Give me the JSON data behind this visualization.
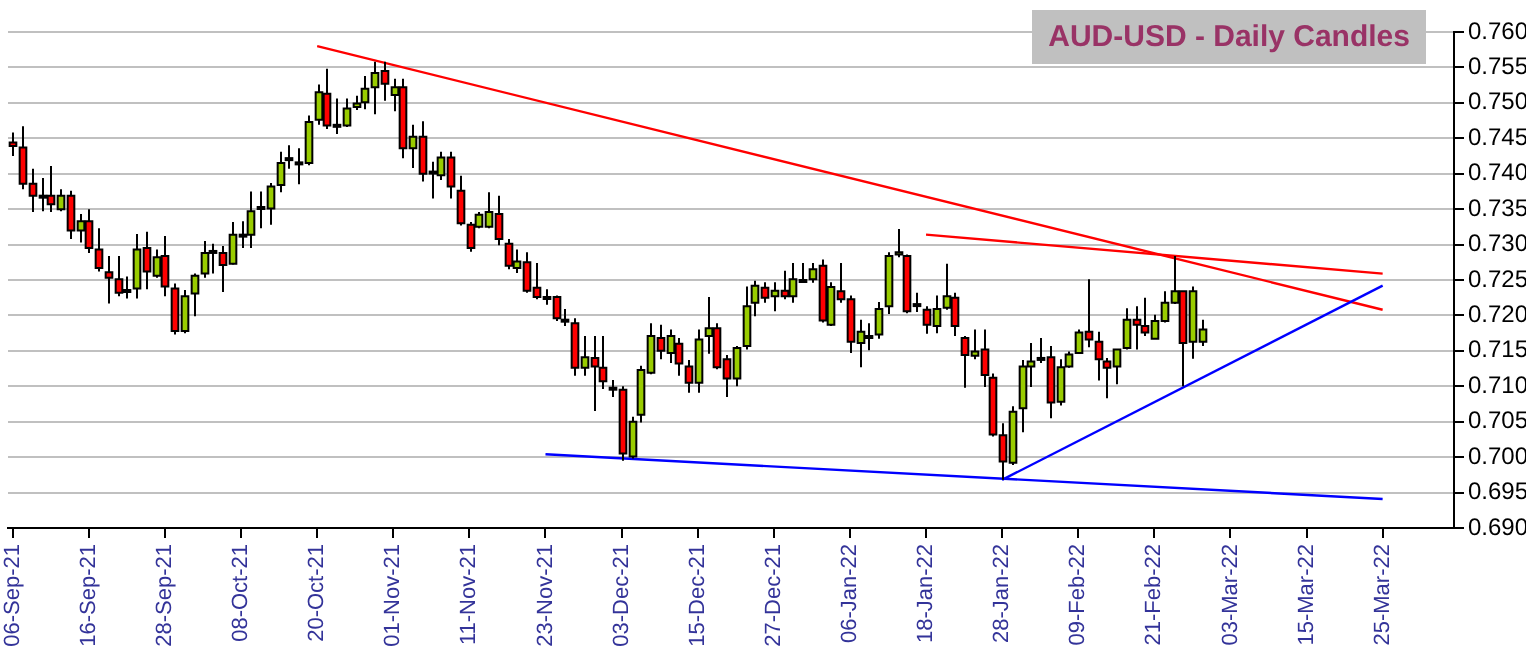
{
  "chart_data": {
    "type": "candlestick",
    "title": "AUD-USD - Daily Candles",
    "categories": [
      "06-Sep-21",
      null,
      null,
      null,
      null,
      null,
      null,
      null,
      "16-Sep-21",
      null,
      null,
      null,
      null,
      null,
      null,
      null,
      "28-Sep-21",
      null,
      null,
      null,
      null,
      null,
      null,
      null,
      "08-Oct-21",
      null,
      null,
      null,
      null,
      null,
      null,
      null,
      "20-Oct-21",
      null,
      null,
      null,
      null,
      null,
      null,
      null,
      "01-Nov-21",
      null,
      null,
      null,
      null,
      null,
      null,
      null,
      "11-Nov-21",
      null,
      null,
      null,
      null,
      null,
      null,
      null,
      "23-Nov-21",
      null,
      null,
      null,
      null,
      null,
      null,
      null,
      "03-Dec-21",
      null,
      null,
      null,
      null,
      null,
      null,
      null,
      "15-Dec-21",
      null,
      null,
      null,
      null,
      null,
      null,
      null,
      "27-Dec-21",
      null,
      null,
      null,
      null,
      null,
      null,
      null,
      "06-Jan-22",
      null,
      null,
      null,
      null,
      null,
      null,
      null,
      "18-Jan-22",
      null,
      null,
      null,
      null,
      null,
      null,
      null,
      "28-Jan-22",
      null,
      null,
      null,
      null,
      null,
      null,
      null,
      "09-Feb-22",
      null,
      null,
      null,
      null,
      null,
      null,
      null,
      "21-Feb-22",
      null,
      null,
      null,
      null,
      null,
      null,
      null,
      "03-Mar-22",
      null,
      null,
      null,
      null,
      null,
      null,
      null,
      "15-Mar-22",
      null,
      null,
      null,
      null,
      null,
      null,
      null,
      "25-Mar-22",
      null,
      null,
      null,
      null,
      null,
      null,
      null
    ],
    "ohlc": [
      [
        0.7444,
        0.7458,
        0.7425,
        0.7439
      ],
      [
        0.7437,
        0.7467,
        0.7378,
        0.7386
      ],
      [
        0.7386,
        0.7407,
        0.7346,
        0.7369
      ],
      [
        0.7369,
        0.7394,
        0.7347,
        0.7368
      ],
      [
        0.7369,
        0.7411,
        0.7346,
        0.7357
      ],
      [
        0.735,
        0.7378,
        0.7347,
        0.7369
      ],
      [
        0.7369,
        0.7376,
        0.7308,
        0.732
      ],
      [
        0.732,
        0.7343,
        0.7303,
        0.7333
      ],
      [
        0.7333,
        0.735,
        0.7288,
        0.7295
      ],
      [
        0.7293,
        0.7323,
        0.7262,
        0.7267
      ],
      [
        0.7261,
        0.7284,
        0.7217,
        0.7253
      ],
      [
        0.7251,
        0.7284,
        0.7227,
        0.7232
      ],
      [
        0.7236,
        0.7255,
        0.7224,
        0.7233
      ],
      [
        0.7238,
        0.7315,
        0.7224,
        0.7293
      ],
      [
        0.7295,
        0.7318,
        0.7237,
        0.7262
      ],
      [
        0.7256,
        0.7293,
        0.7253,
        0.7282
      ],
      [
        0.7284,
        0.7312,
        0.7227,
        0.7241
      ],
      [
        0.7238,
        0.7245,
        0.7173,
        0.7178
      ],
      [
        0.7178,
        0.7236,
        0.7175,
        0.7227
      ],
      [
        0.7231,
        0.7259,
        0.7199,
        0.7256
      ],
      [
        0.7259,
        0.7305,
        0.7253,
        0.7288
      ],
      [
        0.7291,
        0.7301,
        0.7259,
        0.729
      ],
      [
        0.7288,
        0.7298,
        0.7233,
        0.7271
      ],
      [
        0.7273,
        0.7332,
        0.7272,
        0.7314
      ],
      [
        0.7314,
        0.7333,
        0.7295,
        0.7312
      ],
      [
        0.7314,
        0.7375,
        0.7295,
        0.7347
      ],
      [
        0.7351,
        0.7375,
        0.7323,
        0.7353
      ],
      [
        0.7351,
        0.7387,
        0.7328,
        0.7382
      ],
      [
        0.7384,
        0.7431,
        0.7374,
        0.7415
      ],
      [
        0.742,
        0.744,
        0.7407,
        0.7422
      ],
      [
        0.7416,
        0.7436,
        0.7385,
        0.7414
      ],
      [
        0.7415,
        0.7482,
        0.7412,
        0.7473
      ],
      [
        0.7476,
        0.7526,
        0.7469,
        0.7515
      ],
      [
        0.7513,
        0.7548,
        0.7463,
        0.7468
      ],
      [
        0.7469,
        0.7506,
        0.7456,
        0.7468
      ],
      [
        0.7468,
        0.7506,
        0.7466,
        0.7492
      ],
      [
        0.7494,
        0.751,
        0.749,
        0.7499
      ],
      [
        0.7501,
        0.7538,
        0.7491,
        0.752
      ],
      [
        0.7522,
        0.7558,
        0.7484,
        0.7542
      ],
      [
        0.7545,
        0.7558,
        0.7503,
        0.7527
      ],
      [
        0.7511,
        0.7534,
        0.7488,
        0.7522
      ],
      [
        0.7522,
        0.7534,
        0.7422,
        0.7436
      ],
      [
        0.7436,
        0.7469,
        0.7408,
        0.7452
      ],
      [
        0.7452,
        0.7474,
        0.7389,
        0.74
      ],
      [
        0.7403,
        0.7417,
        0.7365,
        0.7402
      ],
      [
        0.7398,
        0.7431,
        0.7391,
        0.7423
      ],
      [
        0.7423,
        0.7431,
        0.7365,
        0.7382
      ],
      [
        0.7376,
        0.7397,
        0.7327,
        0.733
      ],
      [
        0.7328,
        0.7332,
        0.729,
        0.7295
      ],
      [
        0.7325,
        0.7346,
        0.7323,
        0.7342
      ],
      [
        0.7325,
        0.7374,
        0.7323,
        0.7346
      ],
      [
        0.7343,
        0.7369,
        0.7299,
        0.7308
      ],
      [
        0.7301,
        0.7308,
        0.7265,
        0.727
      ],
      [
        0.7267,
        0.7293,
        0.726,
        0.7276
      ],
      [
        0.7275,
        0.7289,
        0.7232,
        0.7235
      ],
      [
        0.7239,
        0.7274,
        0.7223,
        0.7226
      ],
      [
        0.7226,
        0.7237,
        0.7215,
        0.7225
      ],
      [
        0.7226,
        0.7228,
        0.7192,
        0.7196
      ],
      [
        0.7194,
        0.7209,
        0.7185,
        0.7193
      ],
      [
        0.7189,
        0.7196,
        0.7115,
        0.7126
      ],
      [
        0.7126,
        0.7171,
        0.7115,
        0.7141
      ],
      [
        0.714,
        0.7171,
        0.7065,
        0.7128
      ],
      [
        0.7126,
        0.7171,
        0.7096,
        0.7107
      ],
      [
        0.7098,
        0.7109,
        0.7085,
        0.7097
      ],
      [
        0.7095,
        0.71,
        0.6995,
        0.7005
      ],
      [
        0.7001,
        0.7057,
        0.6998,
        0.705
      ],
      [
        0.706,
        0.7129,
        0.7049,
        0.7123
      ],
      [
        0.7119,
        0.7189,
        0.7117,
        0.7171
      ],
      [
        0.7168,
        0.7187,
        0.7138,
        0.715
      ],
      [
        0.7147,
        0.718,
        0.7133,
        0.7171
      ],
      [
        0.716,
        0.7168,
        0.7115,
        0.7132
      ],
      [
        0.7128,
        0.7137,
        0.7091,
        0.7105
      ],
      [
        0.7105,
        0.718,
        0.7091,
        0.7166
      ],
      [
        0.7171,
        0.7226,
        0.7146,
        0.7182
      ],
      [
        0.7182,
        0.7189,
        0.7124,
        0.7127
      ],
      [
        0.7138,
        0.7144,
        0.7085,
        0.7111
      ],
      [
        0.7111,
        0.7157,
        0.71,
        0.7154
      ],
      [
        0.7157,
        0.7241,
        0.7152,
        0.7213
      ],
      [
        0.7218,
        0.7249,
        0.7199,
        0.7242
      ],
      [
        0.7239,
        0.7247,
        0.7218,
        0.7225
      ],
      [
        0.7227,
        0.7247,
        0.7206,
        0.7235
      ],
      [
        0.7235,
        0.7263,
        0.7223,
        0.7227
      ],
      [
        0.7227,
        0.7274,
        0.7218,
        0.7251
      ],
      [
        0.7249,
        0.7274,
        0.7246,
        0.725
      ],
      [
        0.7251,
        0.7274,
        0.7246,
        0.7265
      ],
      [
        0.727,
        0.7279,
        0.719,
        0.7193
      ],
      [
        0.7187,
        0.7247,
        0.7185,
        0.724
      ],
      [
        0.7234,
        0.7274,
        0.7218,
        0.7223
      ],
      [
        0.7223,
        0.7228,
        0.7147,
        0.7163
      ],
      [
        0.7161,
        0.7194,
        0.7127,
        0.7177
      ],
      [
        0.717,
        0.7189,
        0.7151,
        0.7171
      ],
      [
        0.7173,
        0.7219,
        0.7167,
        0.7209
      ],
      [
        0.7213,
        0.7289,
        0.7202,
        0.7284
      ],
      [
        0.7286,
        0.7322,
        0.7282,
        0.7289
      ],
      [
        0.7284,
        0.7286,
        0.7203,
        0.7206
      ],
      [
        0.7216,
        0.7232,
        0.7205,
        0.7215
      ],
      [
        0.7208,
        0.7213,
        0.7174,
        0.7187
      ],
      [
        0.7185,
        0.7228,
        0.7175,
        0.7209
      ],
      [
        0.7211,
        0.7273,
        0.7208,
        0.7227
      ],
      [
        0.7225,
        0.7232,
        0.7171,
        0.7185
      ],
      [
        0.7168,
        0.7171,
        0.7098,
        0.7144
      ],
      [
        0.7143,
        0.718,
        0.7138,
        0.7149
      ],
      [
        0.7152,
        0.718,
        0.7099,
        0.7116
      ],
      [
        0.7112,
        0.7118,
        0.7029,
        0.7032
      ],
      [
        0.7031,
        0.7048,
        0.6968,
        0.6994
      ],
      [
        0.6992,
        0.7072,
        0.6989,
        0.7064
      ],
      [
        0.7069,
        0.7137,
        0.7035,
        0.7128
      ],
      [
        0.7128,
        0.7161,
        0.7099,
        0.7135
      ],
      [
        0.714,
        0.7168,
        0.7133,
        0.7139
      ],
      [
        0.7141,
        0.7157,
        0.7055,
        0.7077
      ],
      [
        0.7078,
        0.7138,
        0.7073,
        0.7127
      ],
      [
        0.7128,
        0.7149,
        0.7126,
        0.7145
      ],
      [
        0.7147,
        0.718,
        0.7147,
        0.7176
      ],
      [
        0.7177,
        0.7251,
        0.7155,
        0.7166
      ],
      [
        0.7163,
        0.7177,
        0.7108,
        0.7138
      ],
      [
        0.7135,
        0.714,
        0.7083,
        0.7126
      ],
      [
        0.7128,
        0.7152,
        0.7103,
        0.7152
      ],
      [
        0.7154,
        0.721,
        0.7152,
        0.7194
      ],
      [
        0.7194,
        0.7213,
        0.7152,
        0.7187
      ],
      [
        0.7185,
        0.7225,
        0.7171,
        0.7176
      ],
      [
        0.7167,
        0.7201,
        0.7167,
        0.7192
      ],
      [
        0.7192,
        0.7234,
        0.719,
        0.7218
      ],
      [
        0.7218,
        0.7284,
        0.7216,
        0.7234
      ],
      [
        0.7234,
        0.7234,
        0.71,
        0.7161
      ],
      [
        0.7163,
        0.7241,
        0.7139,
        0.7234
      ],
      [
        0.7163,
        0.7194,
        0.7157,
        0.718
      ],
      null,
      null,
      null,
      null,
      null,
      null,
      null,
      null,
      null,
      null,
      null,
      null,
      null,
      null,
      null,
      null,
      null,
      null,
      null,
      null,
      null,
      null,
      null,
      null,
      null,
      null
    ],
    "series": [
      {
        "type": "line",
        "color": "#ff0000",
        "x": [
          "20-Oct-21",
          "25-Mar-22"
        ],
        "values": [
          0.758,
          0.7208
        ]
      },
      {
        "type": "line",
        "color": "#ff0000",
        "x": [
          "18-Jan-22",
          "25-Mar-22"
        ],
        "values": [
          0.7314,
          0.7259
        ]
      },
      {
        "type": "line",
        "color": "#0000ff",
        "x": [
          "23-Nov-21",
          "25-Mar-22"
        ],
        "values": [
          0.7004,
          0.6941
        ]
      },
      {
        "type": "line",
        "color": "#0000ff",
        "x": [
          "28-Jan-22",
          "25-Mar-22"
        ],
        "values": [
          0.6968,
          0.7242
        ]
      }
    ],
    "ylim": [
      0.69,
      0.76
    ],
    "yticks": [
      {
        "value": 0.69,
        "label": "0.690"
      },
      {
        "value": 0.695,
        "label": "0.695"
      },
      {
        "value": 0.7,
        "label": "0.700"
      },
      {
        "value": 0.705,
        "label": "0.705"
      },
      {
        "value": 0.71,
        "label": "0.710"
      },
      {
        "value": 0.715,
        "label": "0.715"
      },
      {
        "value": 0.72,
        "label": "0.720"
      },
      {
        "value": 0.725,
        "label": "0.725"
      },
      {
        "value": 0.73,
        "label": "0.730"
      },
      {
        "value": 0.735,
        "label": "0.735"
      },
      {
        "value": 0.74,
        "label": "0.740"
      },
      {
        "value": 0.745,
        "label": "0.745"
      },
      {
        "value": 0.75,
        "label": "0.750"
      },
      {
        "value": 0.755,
        "label": "0.755"
      },
      {
        "value": 0.76,
        "label": "0.760"
      }
    ],
    "grid": "y",
    "legend": false
  }
}
